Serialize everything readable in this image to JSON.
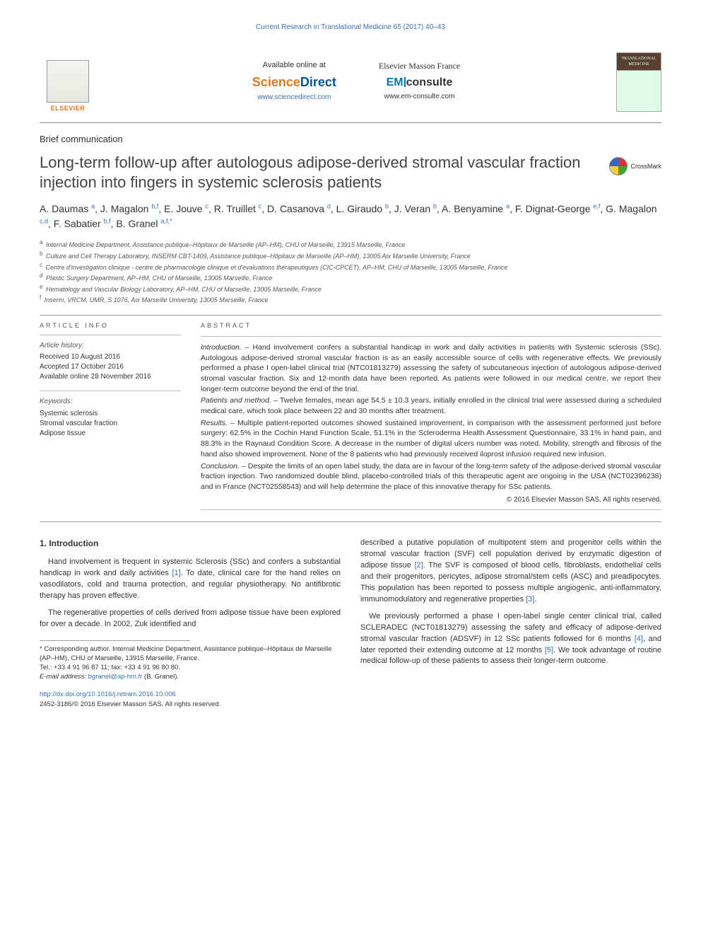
{
  "running_header": "Current Research in Translational Medicine 65 (2017) 40–43",
  "header": {
    "elsevier_label": "ELSEVIER",
    "available_online": "Available online at",
    "sciencedirect_prefix": "Science",
    "sciencedirect_suffix": "Direct",
    "sd_url": "www.sciencedirect.com",
    "elsevier_masson": "Elsevier Masson France",
    "em_prefix": "EM",
    "em_suffix": "consulte",
    "em_url": "www.em-consulte.com",
    "journal_cover_text": "TRANSLATIONAL MEDICINE"
  },
  "section_label": "Brief communication",
  "title": "Long-term follow-up after autologous adipose-derived stromal vascular fraction injection into fingers in systemic sclerosis patients",
  "crossmark_label": "CrossMark",
  "authors_html": "A. Daumas <sup>a</sup>, J. Magalon <sup>b,f</sup>, E. Jouve <sup>c</sup>, R. Truillet <sup>c</sup>, D. Casanova <sup>d</sup>, L. Giraudo <sup>b</sup>, J. Veran <sup>b</sup>, A. Benyamine <sup>a</sup>, F. Dignat-George <sup>e,f</sup>, G. Magalon <sup>c,d</sup>, F. Sabatier <sup>b,f</sup>, B. Granel <sup>a,f,</sup><sup class='corr'>*</sup>",
  "affiliations": [
    {
      "sup": "a",
      "text": "Internal Medicine Department, Assistance publique–Hôpitaux de Marseille (AP–HM), CHU of Marseille, 13915 Marseille, France"
    },
    {
      "sup": "b",
      "text": "Culture and Cell Therapy Laboratory, INSERM CBT-1409, Assistance publique–Hôpitaux de Marseille (AP–HM), 13005 Aix Marseille University, France"
    },
    {
      "sup": "c",
      "text": "Centre d'investigation clinique - centre de pharmacologie clinique et d'évaluations thérapeutiques (CIC-CPCET), AP–HM, CHU of Marseille, 13005 Marseille, France"
    },
    {
      "sup": "d",
      "text": "Plastic Surgery Department, AP–HM, CHU of Marseille, 13005 Marseille, France"
    },
    {
      "sup": "e",
      "text": "Hematology and Vascular Biology Laboratory, AP–HM, CHU of Marseille, 13005 Marseille, France"
    },
    {
      "sup": "f",
      "text": "Inserm, VRCM, UMR_S 1076, Aix Marseille University, 13005 Marseille, France"
    }
  ],
  "article_info": {
    "heading": "ARTICLE INFO",
    "history_label": "Article history:",
    "received": "Received 10 August 2016",
    "accepted": "Accepted 17 October 2016",
    "online": "Available online 28 November 2016",
    "keywords_label": "Keywords:",
    "keywords": [
      "Systemic sclerosis",
      "Stromal vascular fraction",
      "Adipose tissue"
    ]
  },
  "abstract": {
    "heading": "ABSTRACT",
    "intro_label": "Introduction. –",
    "intro_text": "Hand involvement confers a substantial handicap in work and daily activities in patients with Systemic sclerosis (SSc). Autologous adipose-derived stromal vascular fraction is as an easily accessible source of cells with regenerative effects. We previously performed a phase I open-label clinical trial (NTC01813279) assessing the safety of subcutaneous injection of autologous adipose-derived stromal vascular fraction. Six and 12-month data have been reported. As patients were followed in our medical centre, we report their longer-term outcome beyond the end of the trial.",
    "patients_label": "Patients and method. –",
    "patients_text": "Twelve females, mean age 54.5 ± 10.3 years, initially enrolled in the clinical trial were assessed during a scheduled medical care, which took place between 22 and 30 months after treatment.",
    "results_label": "Results. –",
    "results_text": "Multiple patient-reported outcomes showed sustained improvement, in comparison with the assessment performed just before surgery: 62.5% in the Cochin Hand Function Scale, 51.1% in the Scleroderma Health Assessment Questionnaire, 33.1% in hand pain, and 88.3% in the Raynaud Condition Score. A decrease in the number of digital ulcers number was noted. Mobility, strength and fibrosis of the hand also showed improvement. None of the 8 patients who had previously received iloprost infusion required new infusion.",
    "conclusion_label": "Conclusion. –",
    "conclusion_text": "Despite the limits of an open label study, the data are in favour of the long-term safety of the adipose-derived stromal vascular fraction injection. Two randomized double blind, placebo-controlled trials of this therapeutic agent are ongoing in the USA (NCT02396238) and in France (NCT02558543) and will help determine the place of this innovative therapy for SSc patients.",
    "copyright": "© 2016 Elsevier Masson SAS. All rights reserved."
  },
  "body": {
    "section1_heading": "1. Introduction",
    "col1_p1_pre": "Hand involvement is frequent in systemic Sclerosis (SSc) and confers a substantial handicap in work and daily activities ",
    "col1_p1_ref": "[1]",
    "col1_p1_post": ". To date, clinical care for the hand relies on vasodilators, cold and trauma protection, and regular physiotherapy. No antifibrotic therapy has proven effective.",
    "col1_p2": "The regenerative properties of cells derived from adipose tissue have been explored for over a decade. In 2002, Zuk identified and",
    "col2_p1_pre": "described a putative population of multipotent stem and progenitor cells within the stromal vascular fraction (SVF) cell population derived by enzymatic digestion of adipose tissue ",
    "col2_p1_ref": "[2]",
    "col2_p1_mid": ". The SVF is composed of blood cells, fibroblasts, endothelial cells and their progenitors, pericytes, adipose stromal/stem cells (ASC) and preadipocytes. This population has been reported to possess multiple angiogenic, anti-inflammatory, immunomodulatory and regenerative properties ",
    "col2_p1_ref2": "[3]",
    "col2_p1_post": ".",
    "col2_p2_pre": "We previously performed a phase I open-label single center clinical trial, called SCLERADEC (NCT01813279) assessing the safety and efficacy of adipose-derived stromal vascular fraction (ADSVF) in 12 SSc patients followed for 6 months ",
    "col2_p2_ref": "[4]",
    "col2_p2_mid": ", and later reported their extending outcome at 12 months ",
    "col2_p2_ref2": "[5]",
    "col2_p2_post": ". We took advantage of routine medical follow-up of these patients to assess their longer-term outcome."
  },
  "footnote": {
    "corr": "* Corresponding author. Internal Medicine Department, Assistance publique–Hôpitaux de Marseille (AP–HM), CHU of Marseille, 13915 Marseille, France.",
    "tel": "Tel.: +33 4 91 96 87 11; fax: +33 4 91 96 80 80.",
    "email_label": "E-mail address:",
    "email": "bgranel@ap-hm.fr",
    "email_name": "(B. Granel)."
  },
  "doi": "http://dx.doi.org/10.1016/j.retram.2016.10.006",
  "issn": "2452-3186/© 2016 Elsevier Masson SAS. All rights reserved.",
  "colors": {
    "link": "#3b6fb5",
    "orange": "#e67817",
    "text": "#333333",
    "rule": "#999999"
  }
}
